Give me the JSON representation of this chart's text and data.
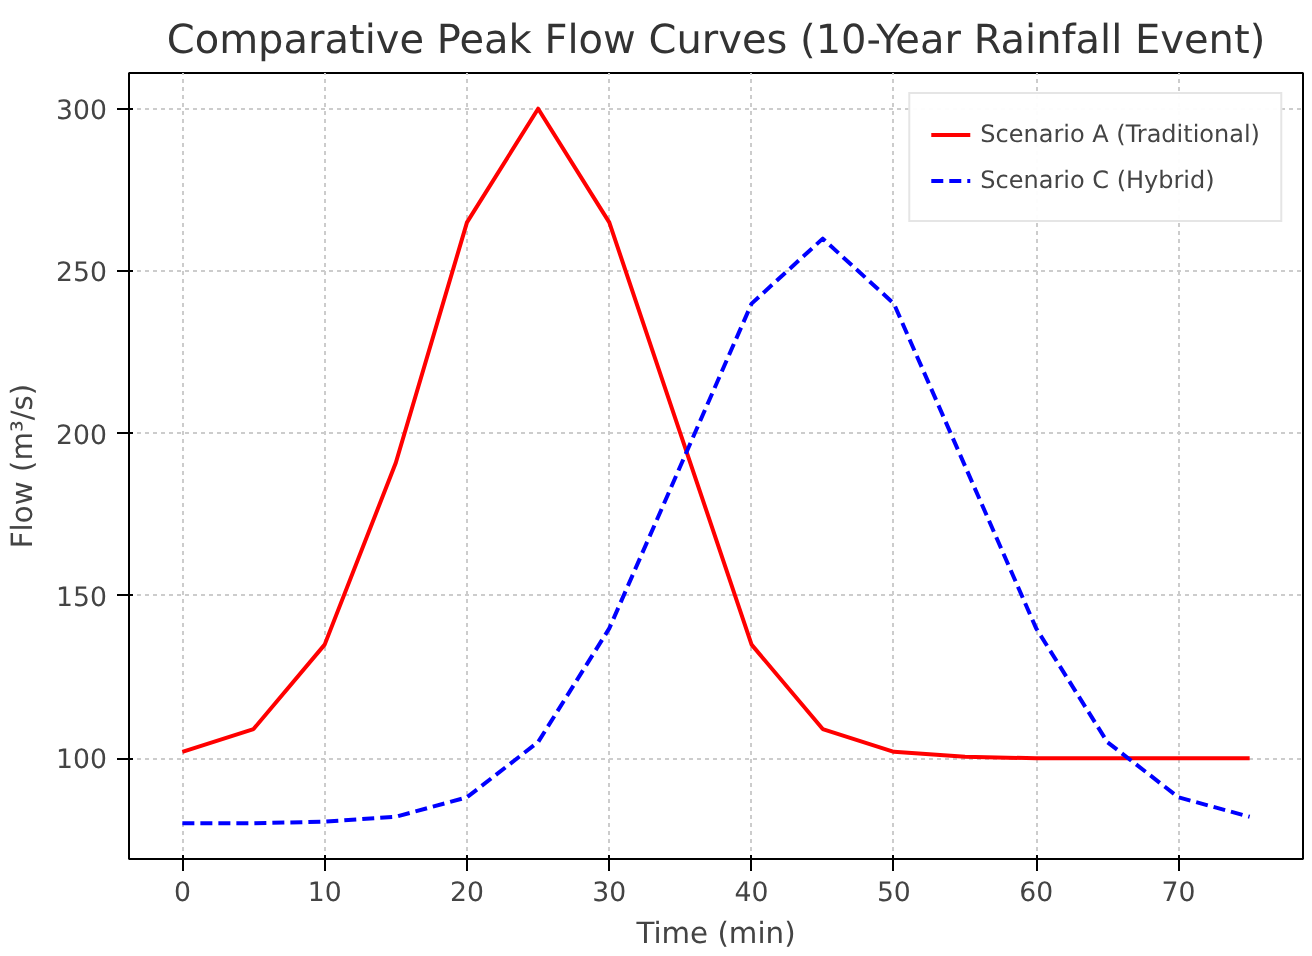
{
  "chart_data": {
    "type": "line",
    "title": "Comparative Peak Flow Curves (10-Year Rainfall Event)",
    "xlabel": "Time (min)",
    "ylabel": "Flow (m³/s)",
    "x": [
      0,
      5,
      10,
      15,
      20,
      25,
      30,
      35,
      40,
      45,
      50,
      55,
      60,
      65,
      70,
      75
    ],
    "series": [
      {
        "name": "Scenario A (Traditional)",
        "color": "#ff0000",
        "line_style": "solid",
        "values": [
          102,
          109,
          135,
          191,
          265,
          300,
          265,
          200,
          135,
          109,
          102,
          100.5,
          100,
          100,
          100,
          100
        ]
      },
      {
        "name": "Scenario C (Hybrid)",
        "color": "#0000ff",
        "line_style": "dashed",
        "values": [
          80,
          80,
          80.5,
          82,
          88,
          105,
          140,
          190,
          240,
          260,
          240,
          190,
          140,
          105,
          88,
          82
        ]
      }
    ],
    "xlim": [
      -3.75,
      78.75
    ],
    "ylim": [
      69,
      311
    ],
    "xticks": [
      0,
      10,
      20,
      30,
      40,
      50,
      60,
      70
    ],
    "yticks": [
      100,
      150,
      200,
      250,
      300
    ],
    "grid": true,
    "legend": "top right"
  }
}
